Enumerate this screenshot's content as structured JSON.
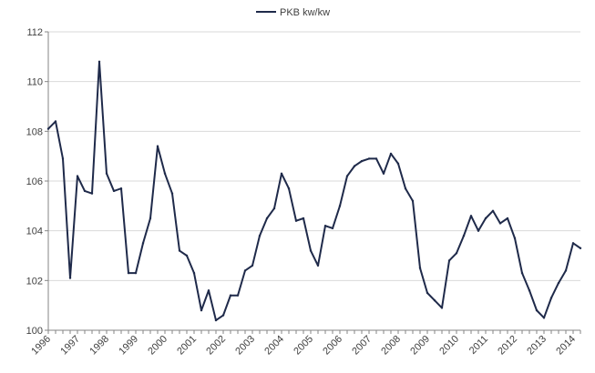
{
  "chart_data": {
    "type": "line",
    "title": "",
    "xlabel": "",
    "ylabel": "",
    "ylim": [
      100,
      112
    ],
    "yticks": [
      100,
      102,
      104,
      106,
      108,
      110,
      112
    ],
    "x_tick_labels": [
      "1996",
      "1997",
      "1998",
      "1999",
      "2000",
      "2001",
      "2002",
      "2003",
      "2004",
      "2005",
      "2006",
      "2007",
      "2008",
      "2009",
      "2010",
      "2011",
      "2012",
      "2013",
      "2014"
    ],
    "grid": "horizontal",
    "legend_position": "top-center",
    "series": [
      {
        "name": "PKB kw/kw",
        "color": "#1f2a4a",
        "x_start": 1996.0,
        "x_step": 0.25,
        "values": [
          108.1,
          108.4,
          106.9,
          102.1,
          106.2,
          105.6,
          105.5,
          110.8,
          106.3,
          105.6,
          105.7,
          102.3,
          102.3,
          103.5,
          104.5,
          107.4,
          106.3,
          105.5,
          103.2,
          103.0,
          102.3,
          100.8,
          101.6,
          100.4,
          100.6,
          101.4,
          101.4,
          102.4,
          102.6,
          103.8,
          104.5,
          104.9,
          106.3,
          105.7,
          104.4,
          104.5,
          103.2,
          102.6,
          104.2,
          104.1,
          105.0,
          106.2,
          106.6,
          106.8,
          106.9,
          106.9,
          106.3,
          107.1,
          106.7,
          105.7,
          105.2,
          102.5,
          101.5,
          101.2,
          100.9,
          102.8,
          103.1,
          103.8,
          104.6,
          104.0,
          104.5,
          104.8,
          104.3,
          104.5,
          103.7,
          102.3,
          101.6,
          100.8,
          100.5,
          101.3,
          101.9,
          102.4,
          103.5,
          103.3
        ]
      }
    ]
  }
}
